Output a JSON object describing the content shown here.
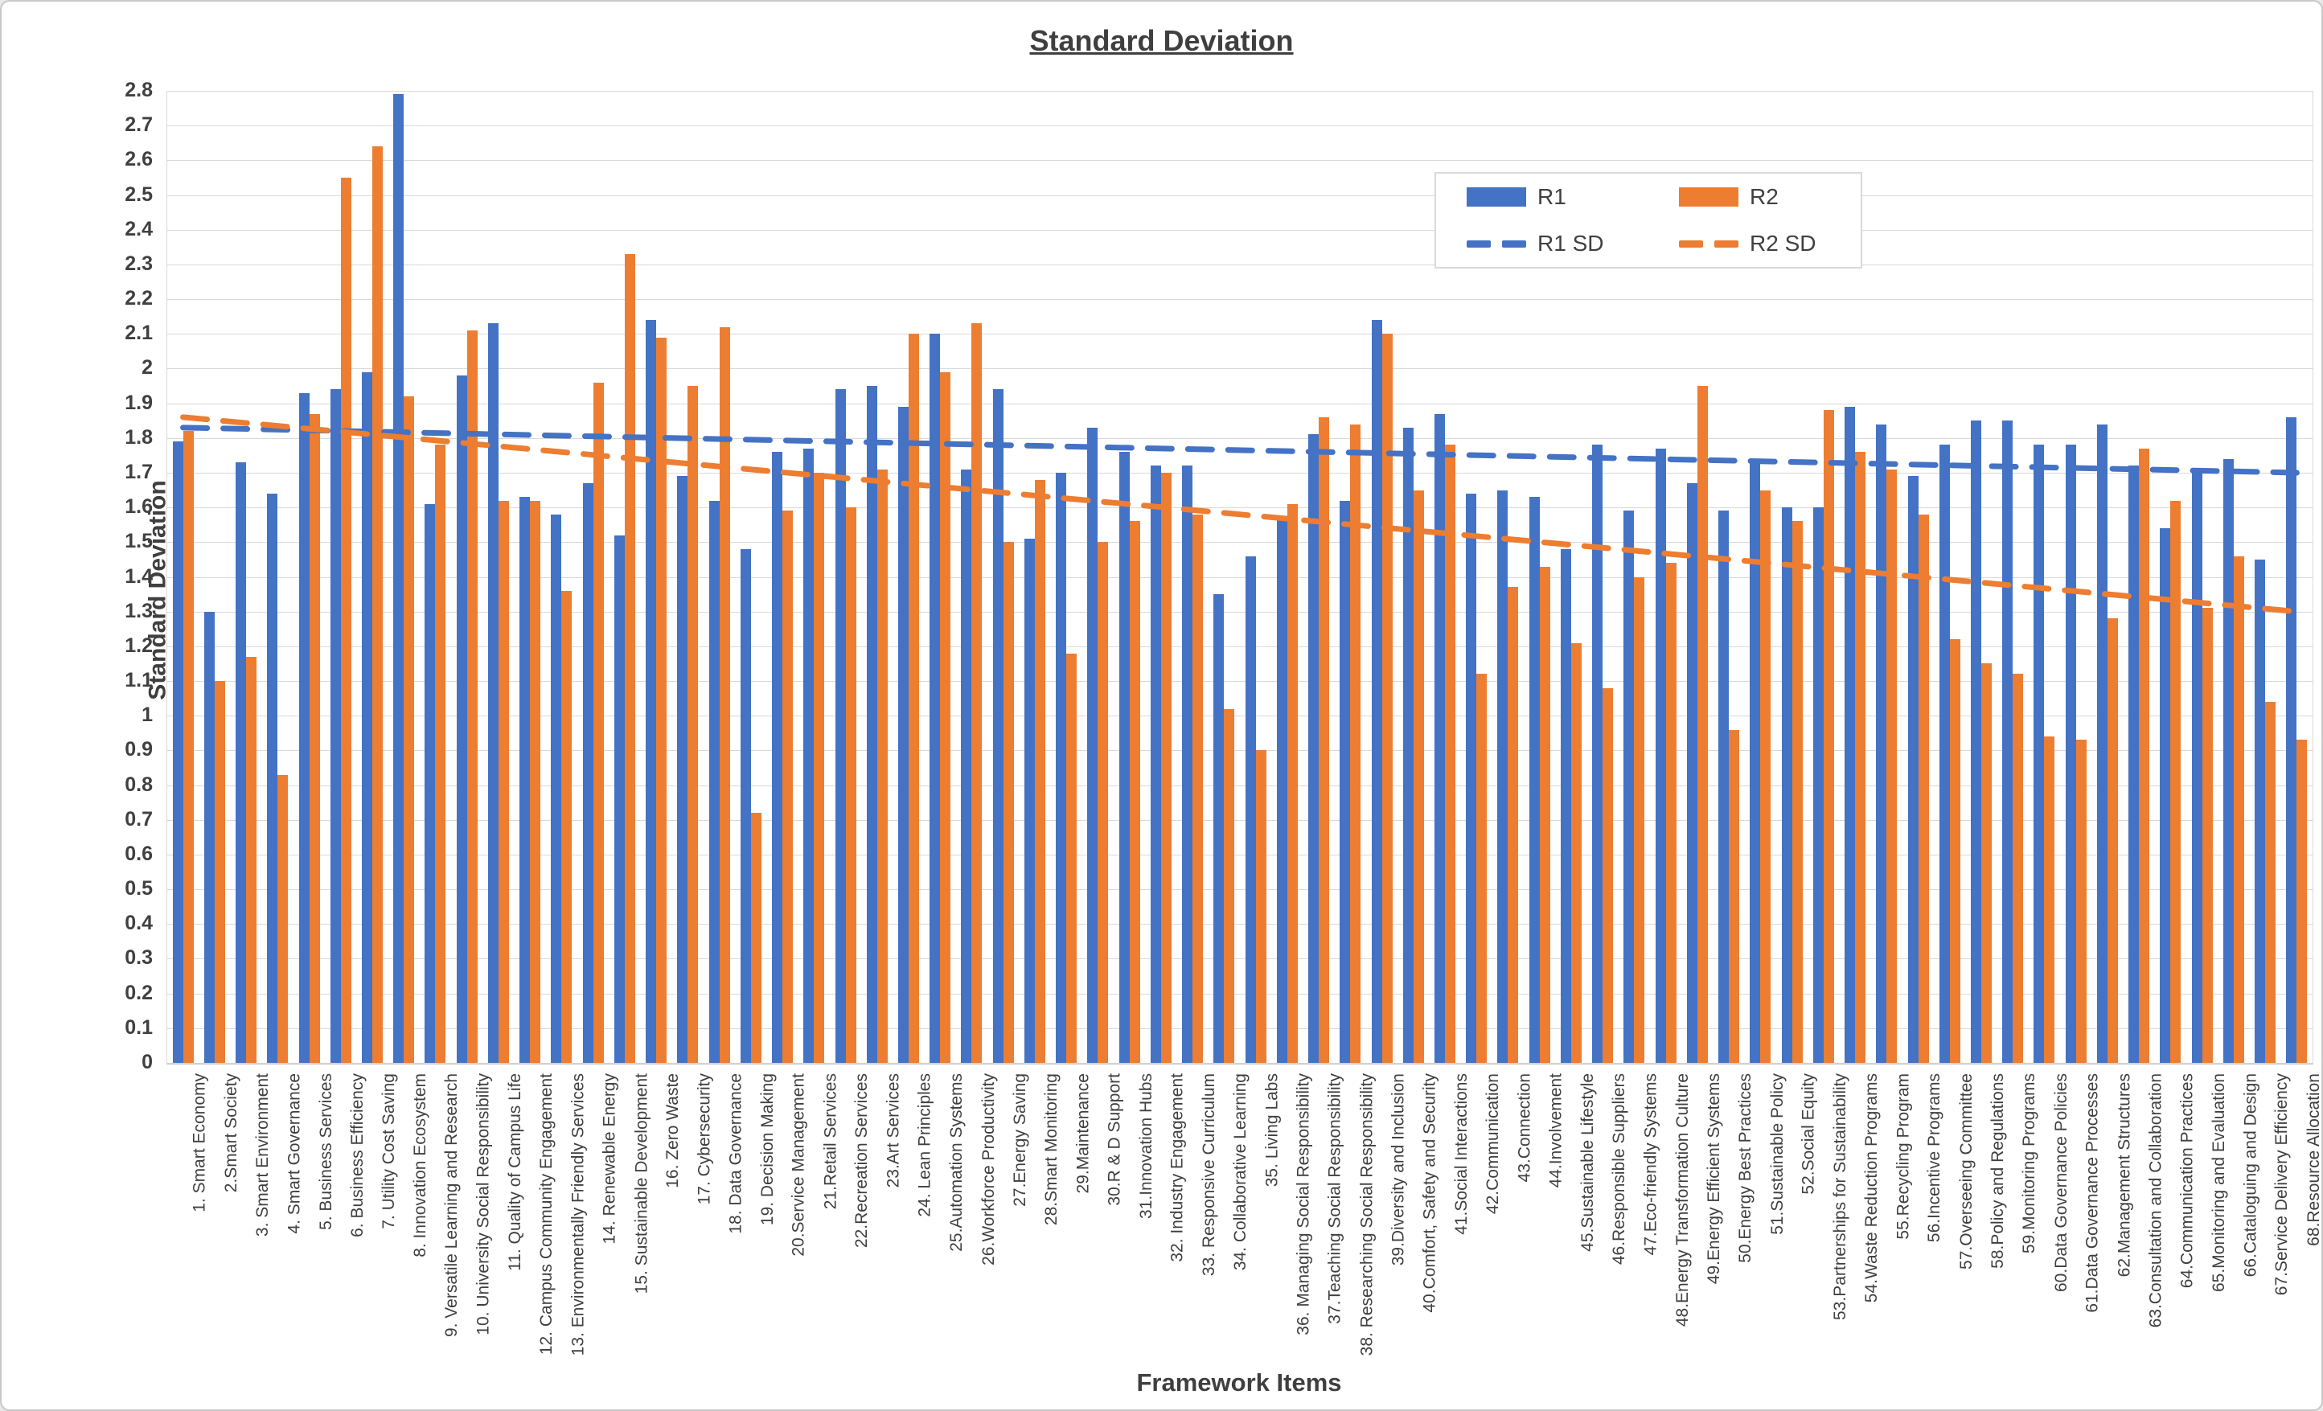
{
  "title": "Standard Deviation",
  "axes": {
    "y_title": "Standard Deviation",
    "x_title": "Framework Items"
  },
  "legend": {
    "r1": "R1",
    "r2": "R2",
    "r1_sd": "R1 SD",
    "r2_sd": "R2 SD"
  },
  "colors": {
    "r1": "#4472C4",
    "r2": "#ED7D31",
    "grid": "#D9D9D9",
    "text": "#404040"
  },
  "chart_data": {
    "type": "bar",
    "title": "Standard Deviation",
    "xlabel": "Framework Items",
    "ylabel": "Standard Deviation",
    "ylim": [
      0,
      2.8
    ],
    "ytick_step": 0.1,
    "grid": true,
    "legend_position": "inside upper right",
    "categories": [
      "1. Smart Economy",
      "2.Smart Society",
      "3. Smart Environment",
      "4. Smart Governance",
      "5. Business Services",
      "6. Business Efficiency",
      "7. Utility Cost Saving",
      "8. Innovation Ecosystem",
      "9. Versatile Learning and Research",
      "10. University Social Responsibility",
      "11. Quality of Campus Life",
      "12. Campus Community Engagement",
      "13. Environmentally Friendly Services",
      "14. Renewable Energy",
      "15. Sustainable Development",
      "16. Zero Waste",
      "17. Cybersecurity",
      "18. Data Governance",
      "19. Decision Making",
      "20.Service Management",
      "21.Retail Services",
      "22.Recreation Services",
      "23.Art Services",
      "24. Lean Principles",
      "25.Automation Systems",
      "26.Workforce Productivity",
      "27.Energy Saving",
      "28.Smart Monitoring",
      "29.Maintenance",
      "30.R & D Support",
      "31.Innovation Hubs",
      "32. Industry Engagement",
      "33. Responsive Curriculum",
      "34. Collaborative Learning",
      "35. Living Labs",
      "36. Managing Social Responsibility",
      "37.Teaching Social Responsibility",
      "38. Researching Social Responsibility",
      "39.Diversity and Inclusion",
      "40.Comfort, Safety and Security",
      "41.Social Interactions",
      "42.Communication",
      "43.Connection",
      "44.Involvement",
      "45.Sustainable Lifestyle",
      "46.Responsible Suppliers",
      "47.Eco-friendly Systems",
      "48.Energy Transformation Culture",
      "49.Energy Efficient Systems",
      "50.Energy Best Practices",
      "51.Sustainable Policy",
      "52.Social Equity",
      "53.Partnerships for Sustainability",
      "54.Waste Reduction Programs",
      "55.Recycling Program",
      "56.Incentive Programs",
      "57.Overseeing Committee",
      "58.Policy and Regulations",
      "59.Monitoring Programs",
      "60.Data Governance Policies",
      "61.Data Governance Processes",
      "62.Management Structures",
      "63.Consultation and Collaboration",
      "64.Communication Practices",
      "65.Monitoring and Evaluation",
      "66.Cataloguing and Design",
      "67.Service Delivery Efficiency",
      "68.Resource Allocation"
    ],
    "series": [
      {
        "name": "R1",
        "type": "bar",
        "color": "#4472C4",
        "values": [
          1.79,
          1.3,
          1.73,
          1.64,
          1.93,
          1.94,
          1.99,
          2.79,
          1.61,
          1.98,
          2.13,
          1.63,
          1.58,
          1.67,
          1.52,
          2.14,
          1.69,
          1.62,
          1.48,
          1.76,
          1.77,
          1.94,
          1.95,
          1.89,
          2.1,
          1.71,
          1.94,
          1.51,
          1.7,
          1.83,
          1.76,
          1.72,
          1.72,
          1.35,
          1.46,
          1.57,
          1.81,
          1.62,
          2.14,
          1.83,
          1.87,
          1.64,
          1.65,
          1.63,
          1.48,
          1.78,
          1.59,
          1.77,
          1.67,
          1.59,
          1.74,
          1.6,
          1.6,
          1.89,
          1.84,
          1.69,
          1.78,
          1.85,
          1.85,
          1.78,
          1.78,
          1.84,
          1.72,
          1.54,
          1.7,
          1.74,
          1.45,
          1.86
        ]
      },
      {
        "name": "R2",
        "type": "bar",
        "color": "#ED7D31",
        "values": [
          1.82,
          1.1,
          1.17,
          0.83,
          1.87,
          2.55,
          2.64,
          1.92,
          1.78,
          2.11,
          1.62,
          1.62,
          1.36,
          1.96,
          2.33,
          2.09,
          1.95,
          2.12,
          0.72,
          1.59,
          1.7,
          1.6,
          1.71,
          2.1,
          1.99,
          2.13,
          1.5,
          1.68,
          1.18,
          1.5,
          1.56,
          1.7,
          1.58,
          1.02,
          0.9,
          1.61,
          1.86,
          1.84,
          2.1,
          1.65,
          1.78,
          1.12,
          1.37,
          1.43,
          1.21,
          1.08,
          1.4,
          1.44,
          1.95,
          0.96,
          1.65,
          1.56,
          1.88,
          1.76,
          1.71,
          1.58,
          1.22,
          1.15,
          1.12,
          0.94,
          0.93,
          1.28,
          1.77,
          1.62,
          1.31,
          1.46,
          1.04,
          0.93
        ]
      }
    ],
    "trend_lines": [
      {
        "name": "R1 SD",
        "color": "#4472C4",
        "style": "dashed",
        "start": 1.83,
        "end": 1.7
      },
      {
        "name": "R2 SD",
        "color": "#ED7D31",
        "style": "dashed",
        "start": 1.86,
        "end": 1.3
      }
    ]
  }
}
